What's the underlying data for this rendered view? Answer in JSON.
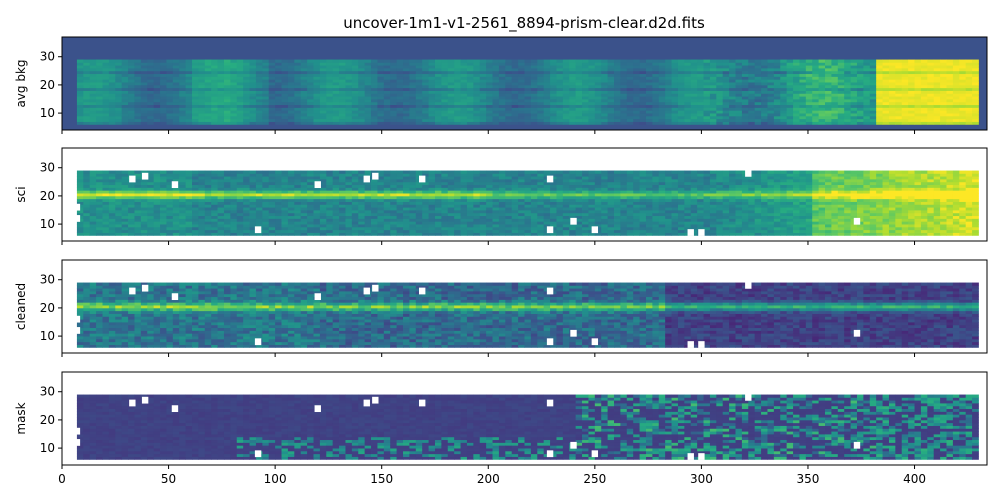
{
  "figure": {
    "title": "uncover-1m1-v1-2561_8894-prism-clear.d2d.fits"
  },
  "chart_data": [
    {
      "type": "heatmap",
      "ylabel": "avg bkg",
      "xlim": [
        0,
        434
      ],
      "ylim": [
        4,
        37
      ],
      "xticks": [
        0,
        50,
        100,
        150,
        200,
        250,
        300,
        350,
        400
      ],
      "yticks": [
        10,
        20,
        30
      ],
      "colormap": "viridis",
      "show_xtick_labels": false
    },
    {
      "type": "heatmap",
      "ylabel": "sci",
      "xlim": [
        0,
        434
      ],
      "ylim": [
        4,
        37
      ],
      "xticks": [
        0,
        50,
        100,
        150,
        200,
        250,
        300,
        350,
        400
      ],
      "yticks": [
        10,
        20,
        30
      ],
      "colormap": "viridis",
      "show_xtick_labels": false
    },
    {
      "type": "heatmap",
      "ylabel": "cleaned",
      "xlim": [
        0,
        434
      ],
      "ylim": [
        4,
        37
      ],
      "xticks": [
        0,
        50,
        100,
        150,
        200,
        250,
        300,
        350,
        400
      ],
      "yticks": [
        10,
        20,
        30
      ],
      "colormap": "viridis",
      "show_xtick_labels": false
    },
    {
      "type": "heatmap",
      "ylabel": "mask",
      "xlim": [
        0,
        434
      ],
      "ylim": [
        4,
        37
      ],
      "xticks": [
        0,
        50,
        100,
        150,
        200,
        250,
        300,
        350,
        400
      ],
      "yticks": [
        10,
        20,
        30
      ],
      "colormap": "viridis",
      "show_xtick_labels": true
    }
  ],
  "colors": {
    "viridis_dark": "#440154",
    "viridis_bg": "#3b528b",
    "viridis_mid": "#21918c",
    "viridis_light": "#5ec962",
    "viridis_bright": "#fde725"
  }
}
